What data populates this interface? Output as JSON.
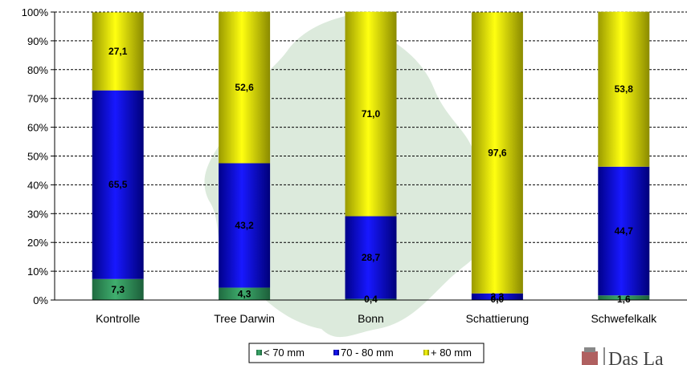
{
  "chart_data": {
    "type": "bar",
    "stacked": true,
    "percent_stacked": true,
    "categories": [
      "Kontrolle",
      "Tree Darwin",
      "Bonn",
      "Schattierung",
      "Schwefelkalk"
    ],
    "series": [
      {
        "name": "< 70 mm",
        "color": "#2e8b57",
        "values": [
          7.3,
          4.3,
          0.4,
          0.0,
          1.6
        ],
        "labels": [
          "7,3",
          "4,3",
          "0,4",
          "0,0",
          "1,6"
        ]
      },
      {
        "name": "70 - 80 mm",
        "color": "#0000cc",
        "values": [
          65.5,
          43.2,
          28.7,
          2.3,
          44.7
        ],
        "labels": [
          "65,5",
          "43,2",
          "28,7",
          "2,3",
          "44,7"
        ]
      },
      {
        "name": "+ 80 mm",
        "color": "#e8e800",
        "values": [
          27.1,
          52.6,
          71.0,
          97.6,
          53.8
        ],
        "labels": [
          "27,1",
          "52,6",
          "71,0",
          "97,6",
          "53,8"
        ]
      }
    ],
    "y_ticks": [
      "0%",
      "10%",
      "20%",
      "30%",
      "40%",
      "50%",
      "60%",
      "70%",
      "80%",
      "90%",
      "100%"
    ],
    "ylim": [
      0,
      100
    ],
    "grid": true,
    "grid_style": "dashed",
    "legend_position": "bottom"
  },
  "watermark": {
    "logo_text": "Das La",
    "logo_icon": "crest-icon",
    "leaf_icon": "oak-leaf-watermark-icon"
  }
}
